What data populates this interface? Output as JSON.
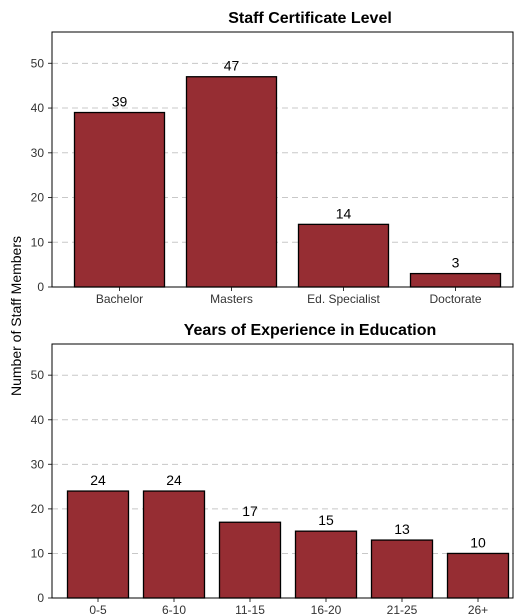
{
  "y_axis_label": "Number of Staff Members",
  "chart_data": [
    {
      "type": "bar",
      "title": "Staff Certificate Level",
      "categories": [
        "Bachelor",
        "Masters",
        "Ed. Specialist",
        "Doctorate"
      ],
      "values": [
        39,
        47,
        14,
        3
      ],
      "ylim": [
        0,
        57
      ],
      "yticks": [
        0,
        10,
        20,
        30,
        40,
        50
      ],
      "ylabel": "Number of Staff Members",
      "grid": true,
      "bar_color": "#962d33"
    },
    {
      "type": "bar",
      "title": "Years of Experience in Education",
      "categories": [
        "0-5",
        "6-10",
        "11-15",
        "16-20",
        "21-25",
        "26+"
      ],
      "values": [
        24,
        24,
        17,
        15,
        13,
        10
      ],
      "ylim": [
        0,
        57
      ],
      "yticks": [
        0,
        10,
        20,
        30,
        40,
        50
      ],
      "ylabel": "Number of Staff Members",
      "grid": true,
      "bar_color": "#962d33"
    }
  ]
}
